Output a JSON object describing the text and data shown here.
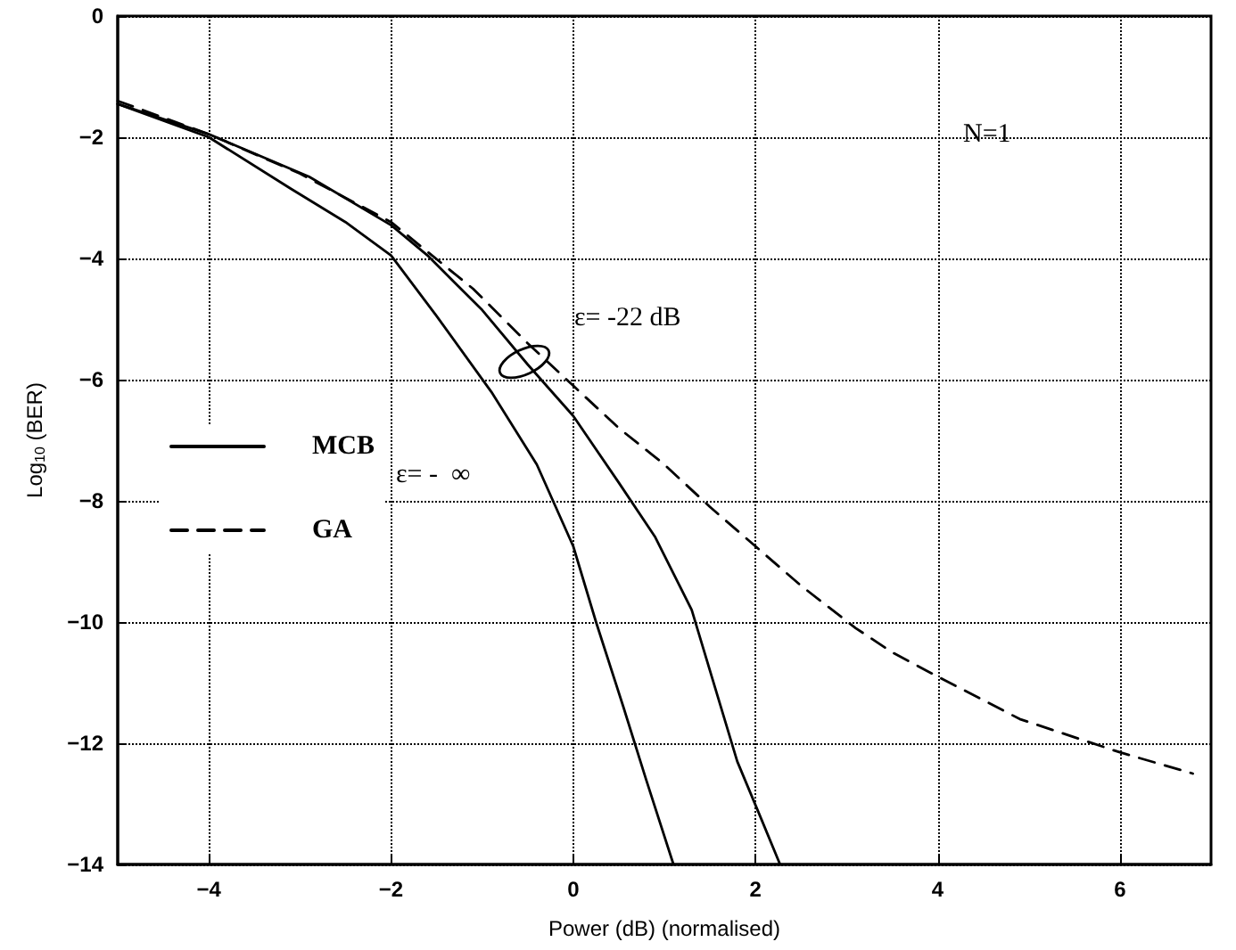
{
  "chart_data": {
    "type": "line",
    "xlabel": "Power (dB) (normalised)",
    "ylabel": "Log$_{10}$ (BER)",
    "xlim": [
      -5,
      7
    ],
    "xticks": [
      -4,
      -2,
      0,
      2,
      4,
      6
    ],
    "ylim": [
      -14,
      0
    ],
    "yticks": [
      -14,
      -12,
      -10,
      -8,
      -6,
      -4,
      -2,
      0
    ],
    "grid": true,
    "legend": "left",
    "marker": "none",
    "series": [
      {
        "name": "MCB",
        "color": "#000000",
        "line_style": "solid",
        "x": [
          -5,
          -4,
          -3.1,
          -2.5,
          -2,
          -1.5,
          -0.9,
          -0.4,
          0,
          0.25,
          0.55,
          0.8,
          1.1
        ],
        "values": [
          -1.45,
          -2.0,
          -2.85,
          -3.4,
          -3.95,
          -4.95,
          -6.2,
          -7.4,
          -8.75,
          -10.0,
          -11.4,
          -12.6,
          -14
        ]
      },
      {
        "color": "#000000",
        "line_style": "solid",
        "x": [
          -5,
          -4,
          -2.9,
          -2,
          -1.6,
          -1,
          -0.5,
          0,
          0.5,
          0.9,
          1.3,
          1.8,
          2.05,
          2.27
        ],
        "values": [
          -1.45,
          -1.95,
          -2.65,
          -3.45,
          -3.95,
          -4.85,
          -5.75,
          -6.6,
          -7.7,
          -8.6,
          -9.8,
          -12.3,
          -13.2,
          -14
        ]
      },
      {
        "name": "GA",
        "color": "#000000",
        "line_style": "dashed",
        "x": [
          -5,
          -4,
          -3,
          -2,
          -1.1,
          -0.5,
          0,
          0.5,
          1.0,
          1.5,
          2.0,
          2.5,
          3.1,
          3.5,
          4.0,
          4.9,
          6.0,
          6.8
        ],
        "values": [
          -1.4,
          -1.95,
          -2.6,
          -3.4,
          -4.5,
          -5.4,
          -6.1,
          -6.8,
          -7.4,
          -8.1,
          -8.75,
          -9.4,
          -10.1,
          -10.5,
          -10.9,
          -11.6,
          -12.15,
          -12.5
        ]
      }
    ],
    "annotations": [
      "ε= -22 dB",
      "ε= -  ∞",
      "N=1"
    ]
  }
}
